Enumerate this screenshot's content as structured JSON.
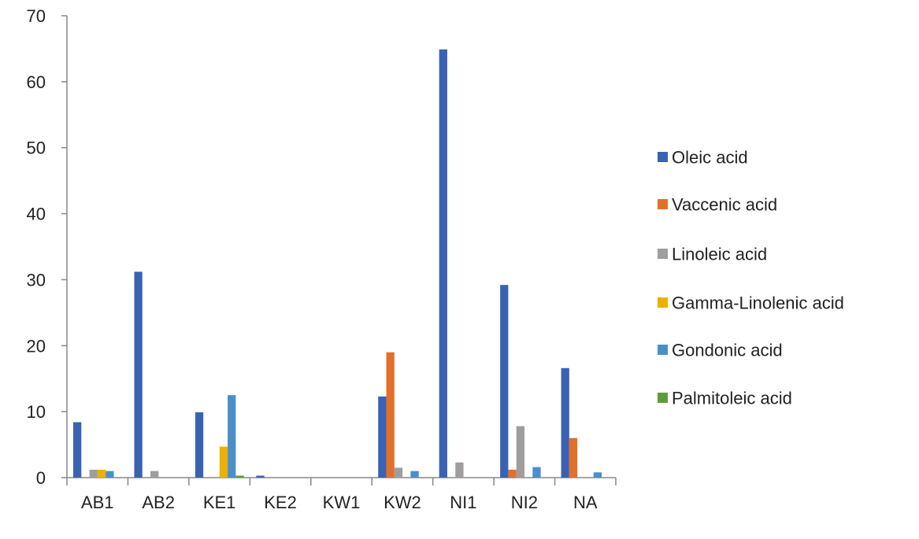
{
  "chart_data": {
    "type": "bar",
    "title": "",
    "xlabel": "",
    "ylabel": "",
    "ylim": [
      0,
      70
    ],
    "yticks": [
      0,
      10,
      20,
      30,
      40,
      50,
      60,
      70
    ],
    "grid": false,
    "legend_position": "right",
    "categories": [
      "AB1",
      "AB2",
      "KE1",
      "KE2",
      "KW1",
      "KW2",
      "NI1",
      "NI2",
      "NA"
    ],
    "series": [
      {
        "name": "Oleic acid",
        "color": "#3A62B3",
        "values": [
          8.4,
          31.2,
          9.9,
          0.3,
          0,
          12.3,
          64.9,
          29.2,
          16.6
        ]
      },
      {
        "name": "Vaccenic acid",
        "color": "#E2702B",
        "values": [
          0,
          0,
          0,
          0,
          0,
          19.0,
          0,
          1.2,
          6.0
        ]
      },
      {
        "name": "Linoleic acid",
        "color": "#9E9E9E",
        "values": [
          1.2,
          1.0,
          0,
          0,
          0,
          1.5,
          2.3,
          7.8,
          0
        ]
      },
      {
        "name": "Gamma-Linolenic acid",
        "color": "#EEB000",
        "values": [
          1.2,
          0,
          4.7,
          0,
          0,
          0,
          0,
          0,
          0
        ]
      },
      {
        "name": "Gondonic acid",
        "color": "#4A8FCB",
        "values": [
          1.0,
          0,
          12.5,
          0,
          0,
          1.0,
          0,
          1.6,
          0.8
        ]
      },
      {
        "name": "Palmitoleic acid",
        "color": "#5E9E3A",
        "values": [
          0,
          0,
          0.3,
          0,
          0,
          0,
          0,
          0,
          0
        ]
      }
    ]
  }
}
